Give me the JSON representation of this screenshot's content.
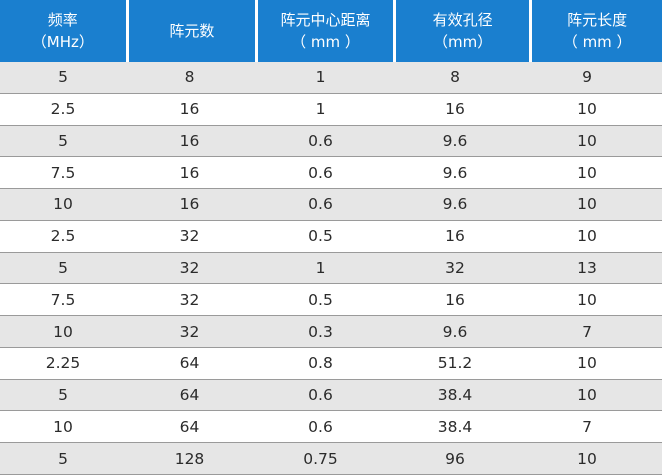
{
  "table": {
    "headers": [
      {
        "line1": "频率",
        "line2": "（MHz）"
      },
      {
        "line1": "阵元数",
        "line2": ""
      },
      {
        "line1": "阵元中心距离",
        "line2": "（ mm ）"
      },
      {
        "line1": "有效孔径",
        "line2": "（mm）"
      },
      {
        "line1": "阵元长度",
        "line2": "（ mm ）"
      }
    ],
    "rows": [
      [
        "5",
        "8",
        "1",
        "8",
        "9"
      ],
      [
        "2.5",
        "16",
        "1",
        "16",
        "10"
      ],
      [
        "5",
        "16",
        "0.6",
        "9.6",
        "10"
      ],
      [
        "7.5",
        "16",
        "0.6",
        "9.6",
        "10"
      ],
      [
        "10",
        "16",
        "0.6",
        "9.6",
        "10"
      ],
      [
        "2.5",
        "32",
        "0.5",
        "16",
        "10"
      ],
      [
        "5",
        "32",
        "1",
        "32",
        "13"
      ],
      [
        "7.5",
        "32",
        "0.5",
        "16",
        "10"
      ],
      [
        "10",
        "32",
        "0.3",
        "9.6",
        "7"
      ],
      [
        "2.25",
        "64",
        "0.8",
        "51.2",
        "10"
      ],
      [
        "5",
        "64",
        "0.6",
        "38.4",
        "10"
      ],
      [
        "10",
        "64",
        "0.6",
        "38.4",
        "7"
      ],
      [
        "5",
        "128",
        "0.75",
        "96",
        "10"
      ]
    ]
  },
  "colors": {
    "header_bg": "#1a7fcf",
    "header_text": "#ffffff",
    "row_alt_bg": "#e6e6e6",
    "row_bg": "#ffffff",
    "row_divider": "#9a9a9a"
  }
}
